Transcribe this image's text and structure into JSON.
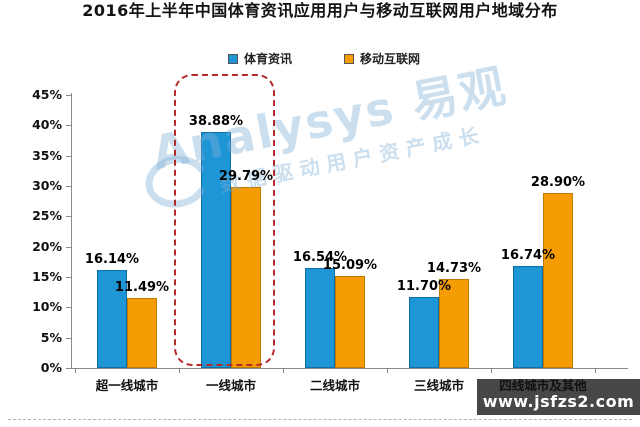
{
  "title": "2016年上半年中国体育资讯应用用户与移动互联网用户地域分布",
  "chart_data": {
    "type": "bar",
    "title": "2016年上半年中国体育资讯应用用户与移动互联网用户地域分布",
    "categories": [
      "超一线城市",
      "一线城市",
      "二线城市",
      "三线城市",
      "四线城市及其他"
    ],
    "series": [
      {
        "name": "体育资讯",
        "color": "#1E96D6",
        "border_color": "#0E6FA5",
        "values": [
          16.14,
          38.88,
          16.54,
          11.7,
          16.74
        ]
      },
      {
        "name": "移动互联网",
        "color": "#F59C04",
        "border_color": "#C07A00",
        "values": [
          11.49,
          29.79,
          15.09,
          14.73,
          28.9
        ]
      }
    ],
    "value_labels": [
      [
        "16.14%",
        "38.88%",
        "16.54%",
        "11.70%",
        "16.74%"
      ],
      [
        "11.49%",
        "29.79%",
        "15.09%",
        "14.73%",
        "28.90%"
      ]
    ],
    "ylabel": "",
    "xlabel": "",
    "ylim": [
      0,
      45
    ],
    "ytick_step": 5,
    "ytick_labels": [
      "0%",
      "5%",
      "10%",
      "15%",
      "20%",
      "25%",
      "30%",
      "35%",
      "40%",
      "45%"
    ],
    "grid": false,
    "legend_position": "top-center",
    "highlight": {
      "category": "一线城市",
      "style": "red-dashed-rounded-box"
    }
  },
  "watermark": {
    "brand": "Analysys 易观",
    "tagline": "数据驱动用户资产成长"
  },
  "footer": {
    "url": "www.jsfzs2.com"
  }
}
